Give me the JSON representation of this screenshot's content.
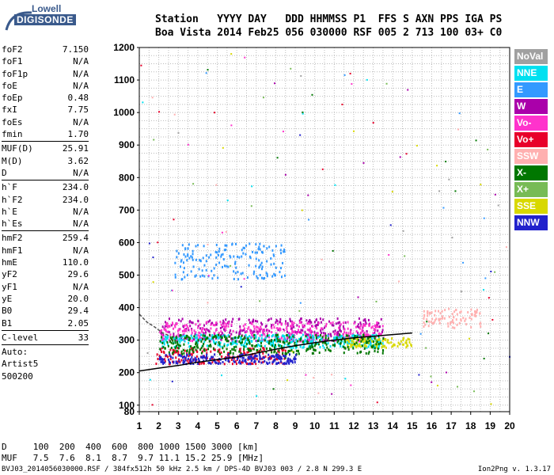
{
  "logo": {
    "line1": "Lowell",
    "line2": "DIGISONDE"
  },
  "header": {
    "line1": "Station   YYYY DAY   DDD HHMMSS P1  FFS S AXN PPS IGA PS",
    "line2": "Boa Vista 2014 Feb25 056 030000 RSF 005 2 713 100 03+ C0"
  },
  "parameters": [
    {
      "group": 1,
      "label": "foF2",
      "value": "7.150"
    },
    {
      "group": 1,
      "label": "foF1",
      "value": "N/A"
    },
    {
      "group": 1,
      "label": "foF1p",
      "value": "N/A"
    },
    {
      "group": 1,
      "label": "foE",
      "value": "N/A"
    },
    {
      "group": 1,
      "label": "foEp",
      "value": "0.48"
    },
    {
      "group": 1,
      "label": "fxI",
      "value": "7.75"
    },
    {
      "group": 1,
      "label": "foEs",
      "value": "N/A"
    },
    {
      "group": 1,
      "label": "fmin",
      "value": "1.70"
    },
    {
      "group": 2,
      "label": "MUF(D)",
      "value": "25.91"
    },
    {
      "group": 2,
      "label": "M(D)",
      "value": "3.62"
    },
    {
      "group": 2,
      "label": "D",
      "value": "N/A"
    },
    {
      "group": 3,
      "label": "h`F",
      "value": "234.0"
    },
    {
      "group": 3,
      "label": "h`F2",
      "value": "234.0"
    },
    {
      "group": 3,
      "label": "h`E",
      "value": "N/A"
    },
    {
      "group": 3,
      "label": "h`Es",
      "value": "N/A"
    },
    {
      "group": 4,
      "label": "hmF2",
      "value": "259.4"
    },
    {
      "group": 4,
      "label": "hmF1",
      "value": "N/A"
    },
    {
      "group": 4,
      "label": "hmE",
      "value": "110.0"
    },
    {
      "group": 4,
      "label": "yF2",
      "value": "29.6"
    },
    {
      "group": 4,
      "label": "yF1",
      "value": "N/A"
    },
    {
      "group": 4,
      "label": "yE",
      "value": "20.0"
    },
    {
      "group": 4,
      "label": "B0",
      "value": "29.4"
    },
    {
      "group": 4,
      "label": "B1",
      "value": "2.05"
    },
    {
      "group": 5,
      "label": "C-level",
      "value": "33"
    }
  ],
  "autoscale": {
    "line1": "Auto:",
    "line2": "Artist5",
    "line3": "500200"
  },
  "muf_table": {
    "d_line": "D     100  200  400  600  800 1000 1500 3000 [km]",
    "muf_line": "MUF   7.5  7.6  8.1  8.7  9.7 11.1 15.2 25.9 [MHz]"
  },
  "footer": {
    "file": "BVJ03_2014056030000.RSF / 384fx512h 50 kHz 2.5 km / DPS-4D BVJ03 003 / 2.8 N 299.3 E",
    "version": "Ion2Png v. 1.3.17"
  },
  "legend": [
    {
      "label": "NoVal",
      "color": "#a0a0a0"
    },
    {
      "label": "NNE",
      "color": "#00e0f0"
    },
    {
      "label": "E",
      "color": "#3399ff"
    },
    {
      "label": "W",
      "color": "#aa00aa"
    },
    {
      "label": "Vo-",
      "color": "#ff33cc"
    },
    {
      "label": "Vo+",
      "color": "#e8002a"
    },
    {
      "label": "SSW",
      "color": "#ffb0b0"
    },
    {
      "label": "X-",
      "color": "#007700"
    },
    {
      "label": "X+",
      "color": "#77bb55"
    },
    {
      "label": "SSE",
      "color": "#d8d800"
    },
    {
      "label": "NNW",
      "color": "#2222cc"
    }
  ],
  "chart_data": {
    "type": "scatter",
    "title": "",
    "xlabel": "",
    "ylabel": "",
    "x_range": [
      1,
      20
    ],
    "y_range": [
      80,
      1200
    ],
    "x_ticks": [
      1,
      2,
      3,
      4,
      5,
      6,
      7,
      8,
      9,
      10,
      11,
      12,
      13,
      14,
      15,
      16,
      17,
      18,
      19,
      20
    ],
    "y_ticks": [
      80,
      100,
      200,
      300,
      400,
      500,
      600,
      700,
      800,
      900,
      1000,
      1100,
      1200
    ],
    "grid": true,
    "legend_position": "right",
    "series": [
      {
        "name": "W",
        "color": "#aa00aa",
        "x_range": [
          2.0,
          13.5
        ],
        "height": [
          300,
          370
        ]
      },
      {
        "name": "Vo-",
        "color": "#ff33cc",
        "x_range": [
          2.0,
          13.5
        ],
        "height": [
          300,
          360
        ]
      },
      {
        "name": "Vo+",
        "color": "#e8002a",
        "x_range": [
          1.8,
          8.5
        ],
        "height": [
          230,
          280
        ]
      },
      {
        "name": "SSW",
        "color": "#ffb0b0",
        "x_range": [
          15.5,
          18.5
        ],
        "height": [
          340,
          400
        ]
      },
      {
        "name": "E",
        "color": "#3399ff",
        "x_range": [
          2.8,
          8.5
        ],
        "height": [
          490,
          600
        ]
      },
      {
        "name": "NNE",
        "color": "#00e0f0",
        "x_range": [
          2.0,
          13.5
        ],
        "height": [
          280,
          320
        ]
      },
      {
        "name": "SSE",
        "color": "#d8d800",
        "x_range": [
          11.5,
          15.0
        ],
        "height": [
          280,
          310
        ]
      },
      {
        "name": "X-",
        "color": "#007700",
        "x_range": [
          2.0,
          13.5
        ],
        "height": [
          260,
          320
        ]
      },
      {
        "name": "NNW",
        "color": "#2222cc",
        "x_range": [
          2.0,
          9.0
        ],
        "height": [
          230,
          260
        ]
      }
    ],
    "trace_lines": [
      {
        "name": "h'F trace",
        "color": "#000000",
        "points": [
          [
            1.0,
            205
          ],
          [
            2,
            214
          ],
          [
            3,
            222
          ],
          [
            4,
            232
          ],
          [
            5,
            240
          ],
          [
            6,
            248
          ],
          [
            7,
            260
          ],
          [
            8,
            272
          ],
          [
            9,
            283
          ],
          [
            10,
            292
          ],
          [
            11,
            300
          ],
          [
            12,
            307
          ],
          [
            13,
            312
          ],
          [
            14,
            317
          ],
          [
            15,
            322
          ]
        ]
      },
      {
        "name": "dashed O-trace",
        "color": "#555555",
        "points": [
          [
            1.0,
            380
          ],
          [
            1.4,
            355
          ],
          [
            1.8,
            340
          ],
          [
            2.2,
            322
          ],
          [
            2.6,
            312
          ]
        ]
      }
    ]
  }
}
